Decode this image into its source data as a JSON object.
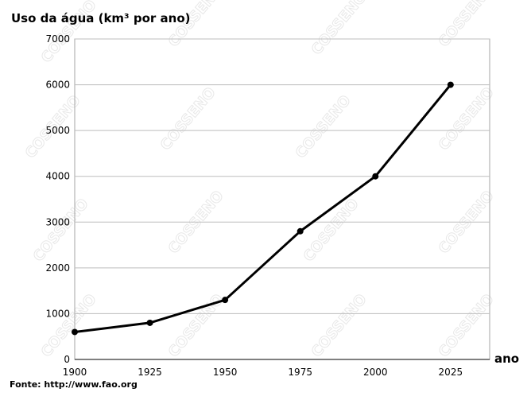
{
  "chart_data": {
    "type": "line",
    "title": "Uso da água (km³ por ano)",
    "xlabel": "ano",
    "ylabel": "",
    "x": [
      1900,
      1925,
      1950,
      1975,
      2000,
      2025
    ],
    "series": [
      {
        "values": [
          600,
          800,
          1300,
          2800,
          4000,
          6000
        ]
      }
    ],
    "ylim": [
      0,
      7000
    ],
    "xlim": [
      1900,
      2038
    ],
    "y_ticks": [
      "0",
      "1000",
      "2000",
      "3000",
      "4000",
      "5000",
      "6000",
      "7000"
    ],
    "x_ticks": [
      "1900",
      "1925",
      "1950",
      "1975",
      "2000",
      "2025"
    ],
    "grid": "horizontal",
    "legend": "none",
    "source": "Fonte: http://www.fao.org",
    "watermark": "COSSENO",
    "colors": {
      "line": "#000000",
      "grid": "#bdbdbd",
      "watermark": "#e8e8e8"
    }
  }
}
